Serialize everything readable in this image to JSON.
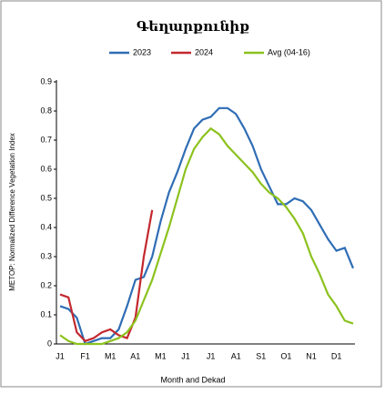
{
  "chart_data": {
    "type": "line",
    "title": "Գեղարքունիք",
    "x_label": "Month and Dekad",
    "y_label": "METOP: Normalized Difference Vegetation Index",
    "categories": [
      "J1",
      null,
      null,
      "F1",
      null,
      null,
      "M1",
      null,
      null,
      "A1",
      null,
      null,
      "M1",
      null,
      null,
      "J1",
      null,
      null,
      "J1",
      null,
      null,
      "A1",
      null,
      null,
      "S1",
      null,
      null,
      "O1",
      null,
      null,
      "N1",
      null,
      null,
      "D1",
      null,
      null
    ],
    "series": [
      {
        "name": "2023",
        "color": "#2f6db5",
        "values": [
          0.13,
          0.12,
          0.09,
          0.0,
          0.01,
          0.02,
          0.02,
          0.05,
          0.13,
          0.22,
          0.23,
          0.3,
          0.42,
          0.52,
          0.59,
          0.67,
          0.74,
          0.77,
          0.78,
          0.81,
          0.81,
          0.79,
          0.74,
          0.68,
          0.6,
          0.54,
          0.48,
          0.48,
          0.5,
          0.49,
          0.46,
          0.41,
          0.36,
          0.32,
          0.33,
          0.26
        ]
      },
      {
        "name": "2024",
        "color": "#c3282e",
        "values": [
          0.17,
          0.16,
          0.04,
          0.01,
          0.02,
          0.04,
          0.05,
          0.03,
          0.02,
          0.09,
          0.3,
          0.46,
          null,
          null,
          null,
          null,
          null,
          null,
          null,
          null,
          null,
          null,
          null,
          null,
          null,
          null,
          null,
          null,
          null,
          null,
          null,
          null,
          null,
          null,
          null,
          null
        ]
      },
      {
        "name": "Avg (04-16)",
        "color": "#8cc21e",
        "values": [
          0.03,
          0.01,
          0.0,
          0.0,
          0.0,
          0.0,
          0.01,
          0.02,
          0.04,
          0.08,
          0.15,
          0.22,
          0.31,
          0.4,
          0.5,
          0.6,
          0.67,
          0.71,
          0.74,
          0.72,
          0.68,
          0.65,
          0.62,
          0.59,
          0.55,
          0.52,
          0.5,
          0.47,
          0.43,
          0.38,
          0.3,
          0.24,
          0.17,
          0.13,
          0.08,
          0.07
        ]
      }
    ],
    "ylim": [
      0,
      0.9
    ],
    "yticks": [
      0,
      0.1,
      0.2,
      0.3,
      0.4,
      0.5,
      0.6,
      0.7,
      0.8,
      0.9
    ]
  }
}
